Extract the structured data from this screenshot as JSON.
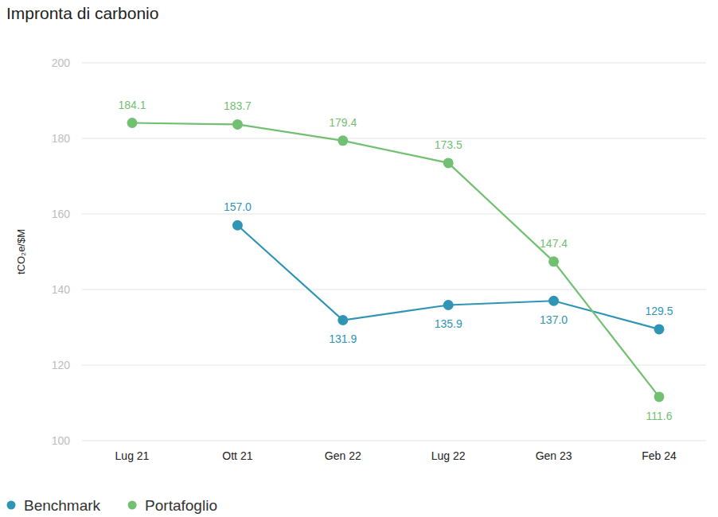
{
  "chart_data": {
    "type": "line",
    "title": "Impronta di carbonio",
    "y_label": "tCO₂e/$M",
    "categories": [
      "Lug 21",
      "Ott 21",
      "Gen 22",
      "Lug 22",
      "Gen 23",
      "Feb 24"
    ],
    "series": [
      {
        "name": "Benchmark",
        "color": "#3095b4",
        "marker": "circle",
        "values": [
          null,
          157.0,
          131.9,
          135.9,
          137.0,
          129.5
        ],
        "value_labels": [
          null,
          "157.0",
          "131.9",
          "135.9",
          "137.0",
          "129.5"
        ]
      },
      {
        "name": "Portafoglio",
        "color": "#72c072",
        "marker": "circle",
        "values": [
          184.1,
          183.7,
          179.4,
          173.5,
          147.4,
          111.6
        ],
        "value_labels": [
          "184.1",
          "183.7",
          "179.4",
          "173.5",
          "147.4",
          "111.6"
        ]
      }
    ],
    "ylim": [
      100,
      200
    ],
    "yticks": [
      100,
      120,
      140,
      160,
      180,
      200
    ],
    "grid": true,
    "data_labels": true,
    "legend": "bottom-left"
  }
}
